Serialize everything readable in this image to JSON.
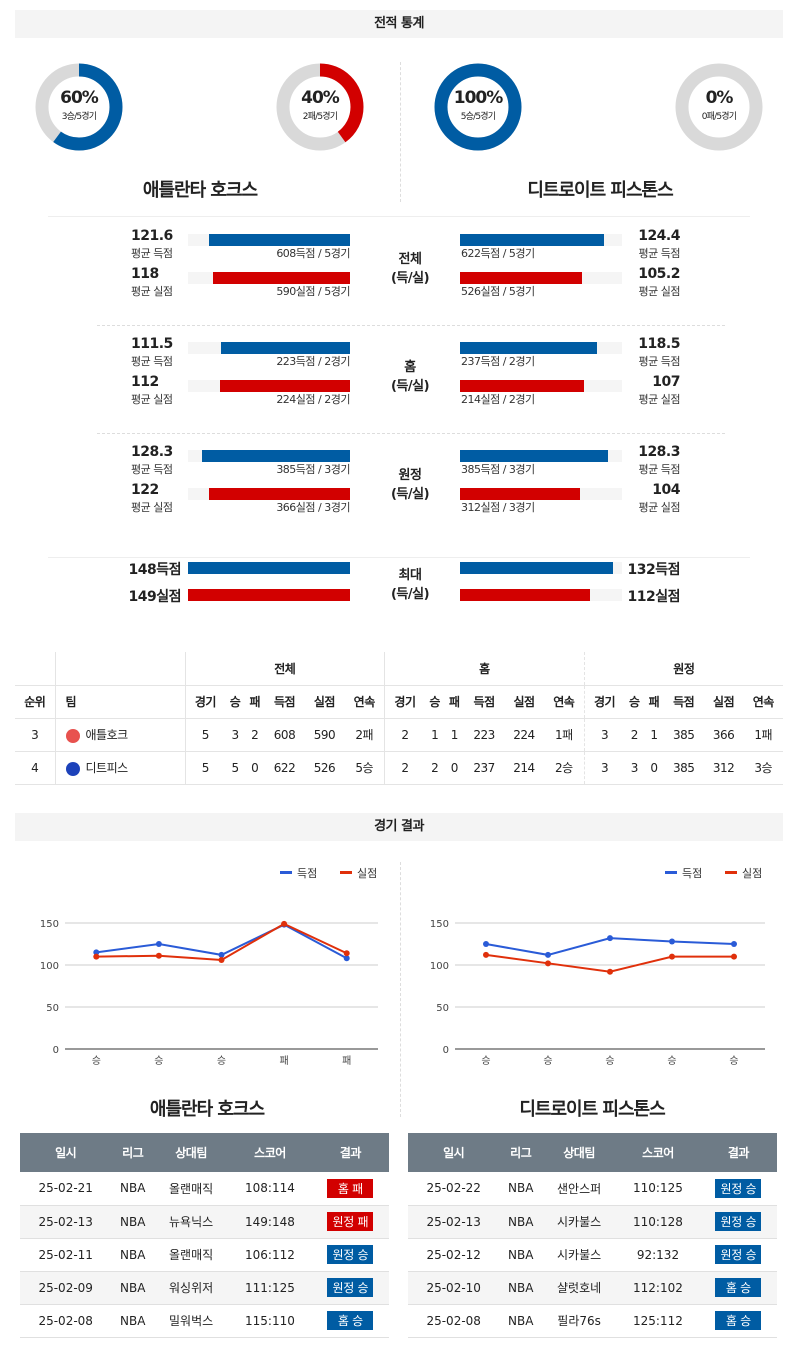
{
  "colors": {
    "blue": "#005ca3",
    "red": "#d20000",
    "gray": "#d9d9d9",
    "header": "#6e7b86"
  },
  "section1": {
    "title": "전적 통계"
  },
  "donuts": [
    {
      "pct": "60%",
      "value": 0.6,
      "sub": "3승/5경기",
      "color": "#005ca3"
    },
    {
      "pct": "40%",
      "value": 0.4,
      "sub": "2패/5경기",
      "color": "#d20000"
    },
    {
      "pct": "100%",
      "value": 1.0,
      "sub": "5승/5경기",
      "color": "#005ca3"
    },
    {
      "pct": "0%",
      "value": 0,
      "sub": "0패/5경기",
      "color": "#d20000"
    }
  ],
  "teams": {
    "left": "애틀란타 호크스",
    "right": "디트로이트 피스톤스"
  },
  "stat_blocks": [
    {
      "center": [
        "전체",
        "(득/실)"
      ],
      "left": [
        {
          "num": "121.6",
          "value": 121.6,
          "label": "평균 득점",
          "detail": "608득점 / 5경기"
        },
        {
          "num": "118",
          "value": 118,
          "label": "평균 실점",
          "detail": "590실점 / 5경기"
        }
      ],
      "right": [
        {
          "num": "124.4",
          "value": 124.4,
          "label": "평균 득점",
          "detail": "622득점 / 5경기"
        },
        {
          "num": "105.2",
          "value": 105.2,
          "label": "평균 실점",
          "detail": "526실점 / 5경기"
        }
      ]
    },
    {
      "center": [
        "홈",
        "(득/실)"
      ],
      "left": [
        {
          "num": "111.5",
          "value": 111.5,
          "label": "평균 득점",
          "detail": "223득점 / 2경기"
        },
        {
          "num": "112",
          "value": 112,
          "label": "평균 실점",
          "detail": "224실점 / 2경기"
        }
      ],
      "right": [
        {
          "num": "118.5",
          "value": 118.5,
          "label": "평균 득점",
          "detail": "237득점 / 2경기"
        },
        {
          "num": "107",
          "value": 107,
          "label": "평균 실점",
          "detail": "214실점 / 2경기"
        }
      ]
    },
    {
      "center": [
        "원정",
        "(득/실)"
      ],
      "left": [
        {
          "num": "128.3",
          "value": 128.3,
          "label": "평균 득점",
          "detail": "385득점 / 3경기"
        },
        {
          "num": "122",
          "value": 122,
          "label": "평균 실점",
          "detail": "366실점 / 3경기"
        }
      ],
      "right": [
        {
          "num": "128.3",
          "value": 128.3,
          "label": "평균 득점",
          "detail": "385득점 / 3경기"
        },
        {
          "num": "104",
          "value": 104,
          "label": "평균 실점",
          "detail": "312실점 / 3경기"
        }
      ]
    }
  ],
  "max_block": {
    "center": [
      "최대",
      "(득/실)"
    ],
    "left": [
      {
        "num": "148득점",
        "value": 148
      },
      {
        "num": "149실점",
        "value": 149
      }
    ],
    "right": [
      {
        "num": "132득점",
        "value": 132
      },
      {
        "num": "112실점",
        "value": 112
      }
    ]
  },
  "standings": {
    "groups": [
      "전체",
      "홈",
      "원정"
    ],
    "headers": [
      "순위",
      "팀",
      "경기",
      "승",
      "패",
      "득점",
      "실점",
      "연속",
      "경기",
      "승",
      "패",
      "득점",
      "실점",
      "연속",
      "경기",
      "승",
      "패",
      "득점",
      "실점",
      "연속"
    ],
    "rows": [
      {
        "rank": "3",
        "team": "애틀호크",
        "logo_color": "#e8524f",
        "cells": [
          "5",
          "3",
          "2",
          "608",
          "590",
          "2패",
          "2",
          "1",
          "1",
          "223",
          "224",
          "1패",
          "3",
          "2",
          "1",
          "385",
          "366",
          "1패"
        ]
      },
      {
        "rank": "4",
        "team": "디트피스",
        "logo_color": "#1d42ba",
        "cells": [
          "5",
          "5",
          "0",
          "622",
          "526",
          "5승",
          "2",
          "2",
          "0",
          "237",
          "214",
          "2승",
          "3",
          "3",
          "0",
          "385",
          "312",
          "3승"
        ]
      }
    ]
  },
  "section2": {
    "title": "경기 결과"
  },
  "chart_data": [
    {
      "type": "line",
      "categories": [
        "승",
        "승",
        "승",
        "패",
        "패"
      ],
      "ylim": [
        0,
        150
      ],
      "yticks": [
        0,
        50,
        100,
        150
      ],
      "legend": "top-right",
      "grid": true,
      "series": [
        {
          "name": "득점",
          "color": "#2a5bd7",
          "values": [
            115,
            125,
            112,
            148,
            108
          ]
        },
        {
          "name": "실점",
          "color": "#e0300b",
          "values": [
            110,
            111,
            106,
            149,
            114
          ]
        }
      ]
    },
    {
      "type": "line",
      "categories": [
        "승",
        "승",
        "승",
        "승",
        "승"
      ],
      "ylim": [
        0,
        150
      ],
      "yticks": [
        0,
        50,
        100,
        150
      ],
      "legend": "top-right",
      "grid": true,
      "series": [
        {
          "name": "득점",
          "color": "#2a5bd7",
          "values": [
            125,
            112,
            132,
            128,
            125
          ]
        },
        {
          "name": "실점",
          "color": "#e0300b",
          "values": [
            112,
            102,
            92,
            110,
            110
          ]
        }
      ]
    }
  ],
  "games": {
    "headers": [
      "일시",
      "리그",
      "상대팀",
      "스코어",
      "결과"
    ],
    "left": [
      {
        "date": "25-02-21",
        "league": "NBA",
        "opp": "올랜매직",
        "score": "108:114",
        "result": "홈 패",
        "color": "#d20000"
      },
      {
        "date": "25-02-13",
        "league": "NBA",
        "opp": "뉴욕닉스",
        "score": "149:148",
        "result": "원정 패",
        "color": "#d20000"
      },
      {
        "date": "25-02-11",
        "league": "NBA",
        "opp": "올랜매직",
        "score": "106:112",
        "result": "원정 승",
        "color": "#005ca3"
      },
      {
        "date": "25-02-09",
        "league": "NBA",
        "opp": "워싱위저",
        "score": "111:125",
        "result": "원정 승",
        "color": "#005ca3"
      },
      {
        "date": "25-02-08",
        "league": "NBA",
        "opp": "밀워벅스",
        "score": "115:110",
        "result": "홈 승",
        "color": "#005ca3"
      }
    ],
    "right": [
      {
        "date": "25-02-22",
        "league": "NBA",
        "opp": "샌안스퍼",
        "score": "110:125",
        "result": "원정 승",
        "color": "#005ca3"
      },
      {
        "date": "25-02-13",
        "league": "NBA",
        "opp": "시카불스",
        "score": "110:128",
        "result": "원정 승",
        "color": "#005ca3"
      },
      {
        "date": "25-02-12",
        "league": "NBA",
        "opp": "시카불스",
        "score": "92:132",
        "result": "원정 승",
        "color": "#005ca3"
      },
      {
        "date": "25-02-10",
        "league": "NBA",
        "opp": "샬럿호네",
        "score": "112:102",
        "result": "홈 승",
        "color": "#005ca3"
      },
      {
        "date": "25-02-08",
        "league": "NBA",
        "opp": "필라76s",
        "score": "125:112",
        "result": "홈 승",
        "color": "#005ca3"
      }
    ]
  }
}
